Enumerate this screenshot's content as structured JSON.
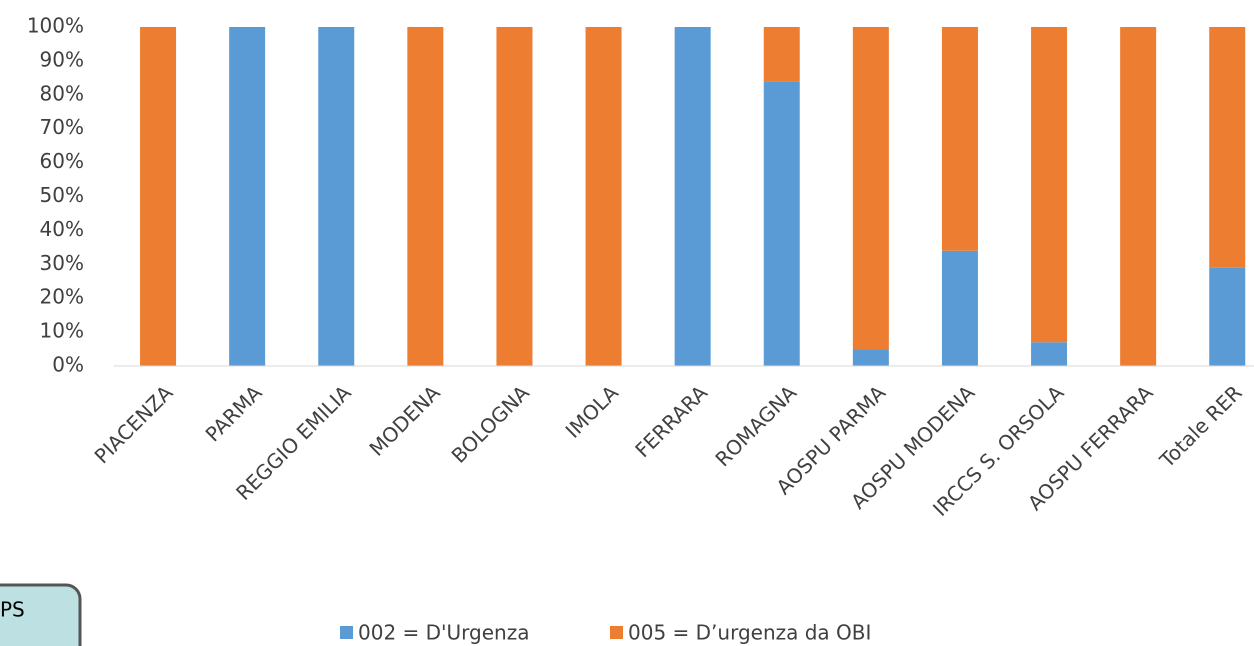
{
  "chart_data": {
    "type": "stacked_bar_percent",
    "categories": [
      "PIACENZA",
      "PARMA",
      "REGGIO EMILIA",
      "MODENA",
      "BOLOGNA",
      "IMOLA",
      "FERRARA",
      "ROMAGNA",
      "AOSPU PARMA",
      "AOSPU MODENA",
      "IRCCS S. ORSOLA",
      "AOSPU FERRARA",
      "Totale RER"
    ],
    "series": [
      {
        "name": "002 = D'Urgenza",
        "color": "#5b9bd5",
        "values": [
          0,
          100,
          100,
          0,
          0,
          0,
          100,
          84,
          5,
          34,
          7,
          0,
          29
        ]
      },
      {
        "name": "005 = D’urgenza da OBI",
        "color": "#ed7d31",
        "values": [
          100,
          0,
          0,
          100,
          100,
          100,
          0,
          16,
          95,
          66,
          93,
          100,
          71
        ]
      }
    ],
    "ylim": [
      0,
      100
    ],
    "yticks": [
      {
        "value": 0,
        "label": "0%"
      },
      {
        "value": 10,
        "label": "10%"
      },
      {
        "value": 20,
        "label": "20%"
      },
      {
        "value": 30,
        "label": "30%"
      },
      {
        "value": 40,
        "label": "40%"
      },
      {
        "value": 50,
        "label": "50%"
      },
      {
        "value": 60,
        "label": "60%"
      },
      {
        "value": 70,
        "label": "70%"
      },
      {
        "value": 80,
        "label": "80%"
      },
      {
        "value": 90,
        "label": "90%"
      },
      {
        "value": 100,
        "label": "100%"
      }
    ],
    "grid": false,
    "legend": "bottom",
    "annotation": "PS"
  }
}
